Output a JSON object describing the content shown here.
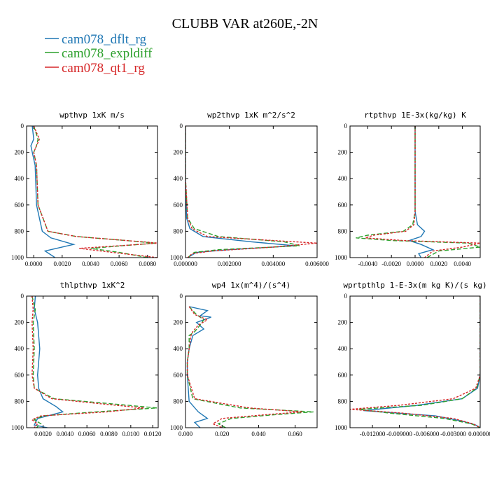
{
  "title": "CLUBB VAR at260E,-2N",
  "legend": [
    {
      "label": "cam078_dflt_rg",
      "color": "#1f77b4",
      "dash": "solid"
    },
    {
      "label": "cam078_expldiff",
      "color": "#2ca02c",
      "dash": "dashed"
    },
    {
      "label": "cam078_qt1_rg",
      "color": "#d62728",
      "dash": "dotted"
    }
  ],
  "chart_data": [
    {
      "type": "line",
      "title": "wpthvp  1xK m/s",
      "xlim": [
        -0.0005,
        0.0087
      ],
      "ylim": [
        1000,
        0
      ],
      "xticks": [
        0.0,
        0.002,
        0.004,
        0.006,
        0.008
      ],
      "xtick_labels": [
        "0.0000",
        "0.0020",
        "0.0040",
        "0.0060",
        "0.0080"
      ],
      "yticks": [
        0,
        200,
        400,
        600,
        800,
        1000
      ],
      "ytick_labels": [
        "0",
        "200",
        "400",
        "600",
        "800",
        "1000"
      ],
      "series": [
        {
          "y": [
            0,
            100,
            150,
            200,
            300,
            600,
            800,
            850,
            900,
            950,
            1000
          ],
          "x": [
            -0.0001,
            0.0,
            -0.0002,
            -0.0001,
            0.0001,
            0.0002,
            0.0006,
            0.0012,
            0.0028,
            0.0008,
            0.0015
          ]
        },
        {
          "y": [
            0,
            100,
            150,
            200,
            300,
            600,
            800,
            840,
            870,
            890,
            930,
            960,
            1000
          ],
          "x": [
            0.0,
            0.0003,
            0.0002,
            0.0,
            0.0002,
            0.0003,
            0.001,
            0.003,
            0.0065,
            0.0085,
            0.004,
            0.006,
            0.008
          ]
        },
        {
          "y": [
            0,
            100,
            150,
            200,
            300,
            600,
            800,
            840,
            870,
            890,
            930,
            960,
            1000
          ],
          "x": [
            0.0,
            0.0004,
            0.0002,
            0.0,
            0.0002,
            0.0003,
            0.001,
            0.003,
            0.0065,
            0.0088,
            0.0032,
            0.0055,
            0.0087
          ]
        }
      ]
    },
    {
      "type": "line",
      "title": "wp2thvp  1xK m^2/s^2",
      "xlim": [
        0.0,
        0.006
      ],
      "ylim": [
        1000,
        0
      ],
      "xticks": [
        0.0,
        0.002,
        0.004,
        0.006
      ],
      "xtick_labels": [
        "0.000000",
        "0.002000",
        "0.004000",
        "0.006000"
      ],
      "yticks": [
        0,
        200,
        400,
        600,
        800,
        1000
      ],
      "ytick_labels": [
        "0",
        "200",
        "400",
        "600",
        "800",
        "1000"
      ],
      "series": [
        {
          "y": [
            0,
            400,
            700,
            780,
            840,
            880,
            910,
            940,
            960,
            1000
          ],
          "x": [
            0.0,
            0.0,
            5e-05,
            0.0002,
            0.0008,
            0.003,
            0.005,
            0.002,
            0.0005,
            0.0001
          ]
        },
        {
          "y": [
            0,
            400,
            700,
            780,
            840,
            880,
            910,
            940,
            960,
            1000
          ],
          "x": [
            0.0,
            0.0,
            0.0001,
            0.0004,
            0.0015,
            0.0045,
            0.0052,
            0.0015,
            0.0004,
            0.0001
          ]
        },
        {
          "y": [
            0,
            400,
            700,
            780,
            840,
            870,
            890,
            920,
            950,
            970,
            1000
          ],
          "x": [
            0.0,
            0.0,
            0.0001,
            0.0003,
            0.001,
            0.004,
            0.006,
            0.004,
            0.0012,
            0.0003,
            0.0001
          ]
        }
      ]
    },
    {
      "type": "line",
      "title": "rtpthvp  1E-3x(kg/kg) K",
      "xlim": [
        -0.0055,
        0.0055
      ],
      "ylim": [
        1000,
        0
      ],
      "xticks": [
        -0.004,
        -0.002,
        0.0,
        0.002,
        0.004
      ],
      "xtick_labels": [
        "-0.0040",
        "-0.0020",
        "0.0000",
        "0.0020",
        "0.0040"
      ],
      "yticks": [
        0,
        200,
        400,
        600,
        800,
        1000
      ],
      "ytick_labels": [
        "0",
        "200",
        "400",
        "600",
        "800",
        "1000"
      ],
      "series": [
        {
          "y": [
            0,
            650,
            750,
            800,
            840,
            870,
            900,
            940,
            970,
            1000
          ],
          "x": [
            0.0,
            0.0,
            0.0002,
            0.0008,
            0.0005,
            -0.0005,
            0.0005,
            0.0015,
            0.0003,
            0.0005
          ]
        },
        {
          "y": [
            0,
            650,
            750,
            800,
            830,
            850,
            870,
            890,
            920,
            950,
            1000
          ],
          "x": [
            0.0,
            0.0,
            -0.0002,
            -0.001,
            -0.004,
            -0.005,
            -0.002,
            0.0045,
            0.0055,
            0.002,
            0.001
          ]
        },
        {
          "y": [
            0,
            650,
            750,
            800,
            830,
            850,
            870,
            890,
            920,
            950,
            1000
          ],
          "x": [
            0.0,
            0.0,
            -0.0001,
            -0.0008,
            -0.0035,
            -0.0042,
            -0.001,
            0.0055,
            0.004,
            0.0015,
            0.0008
          ]
        }
      ]
    },
    {
      "type": "line",
      "title": "thlpthvp  1xK^2",
      "xlim": [
        0.0005,
        0.0125
      ],
      "ylim": [
        1000,
        0
      ],
      "xticks": [
        0.002,
        0.004,
        0.006,
        0.008,
        0.01,
        0.012
      ],
      "xtick_labels": [
        "0.0020",
        "0.0040",
        "0.0060",
        "0.0080",
        "0.0100",
        "0.0120"
      ],
      "yticks": [
        0,
        200,
        400,
        600,
        800,
        1000
      ],
      "ytick_labels": [
        "0",
        "200",
        "400",
        "600",
        "800",
        "1000"
      ],
      "series": [
        {
          "y": [
            0,
            100,
            200,
            400,
            600,
            700,
            780,
            840,
            880,
            930,
            980,
            1000
          ],
          "x": [
            0.0013,
            0.0012,
            0.0015,
            0.0017,
            0.0015,
            0.0016,
            0.002,
            0.0032,
            0.0038,
            0.0015,
            0.0012,
            0.0024
          ]
        },
        {
          "y": [
            0,
            100,
            200,
            400,
            600,
            700,
            780,
            820,
            850,
            880,
            910,
            940,
            970,
            1000
          ],
          "x": [
            0.001,
            0.0013,
            0.0011,
            0.0012,
            0.0011,
            0.0012,
            0.003,
            0.0085,
            0.0124,
            0.0068,
            0.002,
            0.0012,
            0.0018,
            0.0014
          ]
        },
        {
          "y": [
            0,
            100,
            200,
            400,
            600,
            700,
            780,
            820,
            850,
            880,
            910,
            940,
            970,
            1000
          ],
          "x": [
            0.001,
            0.0011,
            0.001,
            0.0011,
            0.001,
            0.0012,
            0.0028,
            0.0075,
            0.0112,
            0.0078,
            0.0018,
            0.001,
            0.0015,
            0.0012
          ]
        }
      ]
    },
    {
      "type": "line",
      "title": "wp4  1x(m^4)/(s^4)",
      "xlim": [
        0.0,
        0.072
      ],
      "ylim": [
        1000,
        0
      ],
      "xticks": [
        0.0,
        0.02,
        0.04,
        0.06
      ],
      "xtick_labels": [
        "0.000",
        "0.020",
        "0.040",
        "0.060"
      ],
      "yticks": [
        0,
        200,
        400,
        600,
        800,
        1000
      ],
      "ytick_labels": [
        "0",
        "200",
        "400",
        "600",
        "800",
        "1000"
      ],
      "series": [
        {
          "y": [
            80,
            110,
            150,
            160,
            200,
            250,
            300,
            400,
            500,
            600,
            800,
            880,
            930,
            960,
            1000
          ],
          "x": [
            0.002,
            0.012,
            0.008,
            0.014,
            0.006,
            0.01,
            0.004,
            0.002,
            0.001,
            0.001,
            0.002,
            0.007,
            0.012,
            0.005,
            0.008
          ]
        },
        {
          "y": [
            80,
            140,
            180,
            220,
            270,
            300,
            400,
            500,
            600,
            780,
            850,
            880,
            900,
            930,
            970,
            1000
          ],
          "x": [
            0.002,
            0.006,
            0.01,
            0.008,
            0.005,
            0.002,
            0.002,
            0.001,
            0.001,
            0.004,
            0.03,
            0.07,
            0.05,
            0.025,
            0.018,
            0.022
          ]
        },
        {
          "y": [
            80,
            140,
            180,
            220,
            270,
            300,
            400,
            500,
            600,
            780,
            850,
            880,
            900,
            930,
            970,
            1000
          ],
          "x": [
            0.002,
            0.005,
            0.012,
            0.007,
            0.004,
            0.003,
            0.002,
            0.001,
            0.001,
            0.005,
            0.035,
            0.064,
            0.045,
            0.02,
            0.015,
            0.02
          ]
        }
      ]
    },
    {
      "type": "line",
      "title": "wprtpthlp  1-E-3x(m kg K)/(s kg)",
      "xlim": [
        -0.0145,
        0.0
      ],
      "ylim": [
        1000,
        0
      ],
      "xticks": [
        -0.012,
        -0.009,
        -0.006,
        -0.003,
        0.0
      ],
      "xtick_labels": [
        "-0.012000",
        "-0.009000",
        "-0.006000",
        "-0.003000",
        "0.000000"
      ],
      "yticks": [
        0,
        200,
        400,
        600,
        800,
        1000
      ],
      "ytick_labels": [
        "0",
        "200",
        "400",
        "600",
        "800",
        "1000"
      ],
      "series": [
        {
          "y": [
            0,
            600,
            700,
            780,
            830,
            870,
            910,
            950,
            980,
            1000
          ],
          "x": [
            0.0,
            0.0,
            -0.0003,
            -0.002,
            -0.007,
            -0.013,
            -0.005,
            -0.002,
            -0.0005,
            0.0
          ]
        },
        {
          "y": [
            0,
            600,
            700,
            780,
            830,
            860,
            890,
            930,
            970,
            1000
          ],
          "x": [
            0.0,
            0.0,
            -0.0004,
            -0.002,
            -0.0065,
            -0.0135,
            -0.01,
            -0.004,
            -0.001,
            0.0
          ]
        },
        {
          "y": [
            0,
            600,
            700,
            780,
            830,
            860,
            890,
            930,
            970,
            1000
          ],
          "x": [
            0.0,
            0.0,
            -0.0005,
            -0.003,
            -0.009,
            -0.0145,
            -0.0085,
            -0.003,
            -0.0008,
            0.0
          ]
        }
      ]
    }
  ]
}
